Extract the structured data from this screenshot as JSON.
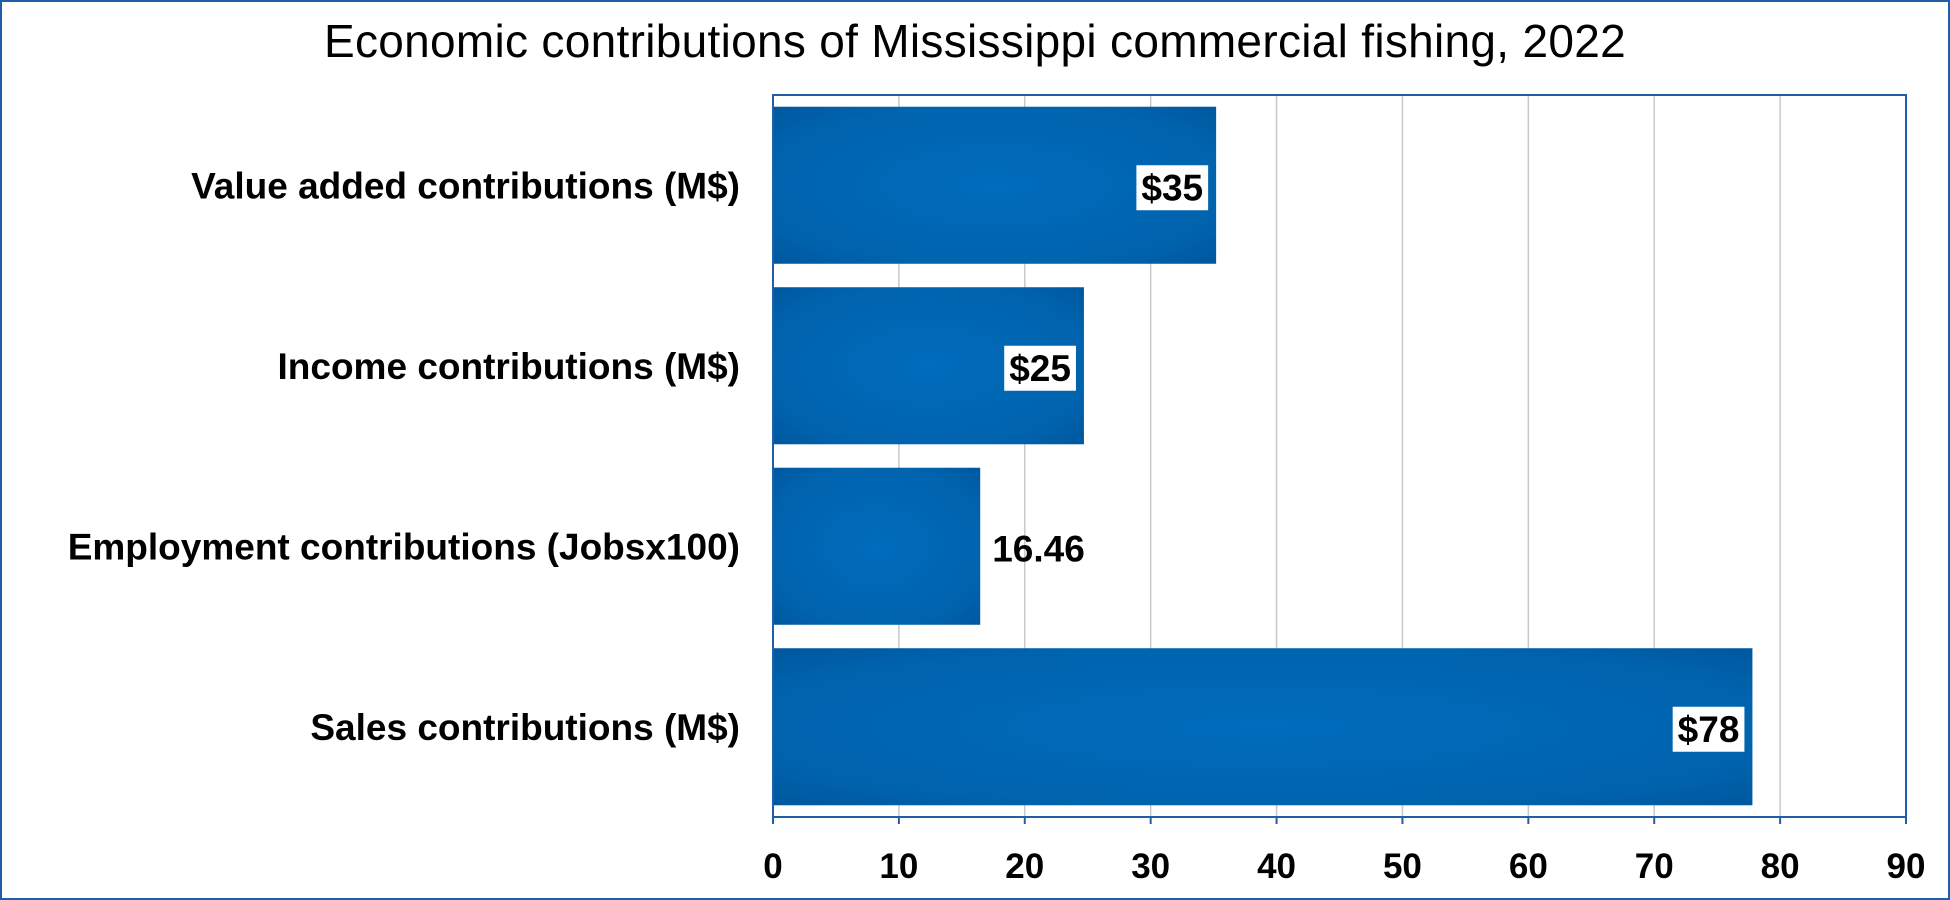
{
  "chart_data": {
    "type": "bar",
    "orientation": "horizontal",
    "title": "Economic contributions of Mississippi commercial fishing, 2022",
    "categories": [
      "Value added contributions (M$)",
      "Income contributions (M$)",
      "Employment contributions (Jobsx100)",
      "Sales contributions (M$)"
    ],
    "values": [
      35.2,
      24.7,
      16.46,
      77.8
    ],
    "data_labels": [
      "$35",
      "$25",
      "16.46",
      "$78"
    ],
    "data_label_boxed": [
      true,
      true,
      false,
      true
    ],
    "xlim": [
      0,
      90
    ],
    "x_ticks": [
      0,
      10,
      20,
      30,
      40,
      50,
      60,
      70,
      80,
      90
    ],
    "grid": "vertical",
    "legend": "none",
    "colors": {
      "bar": "#0064b0",
      "bar_dark": "#004f91",
      "frame": "#1f5fa8",
      "plot_border": "#1f5fa8",
      "grid": "#c8c8c8"
    }
  }
}
